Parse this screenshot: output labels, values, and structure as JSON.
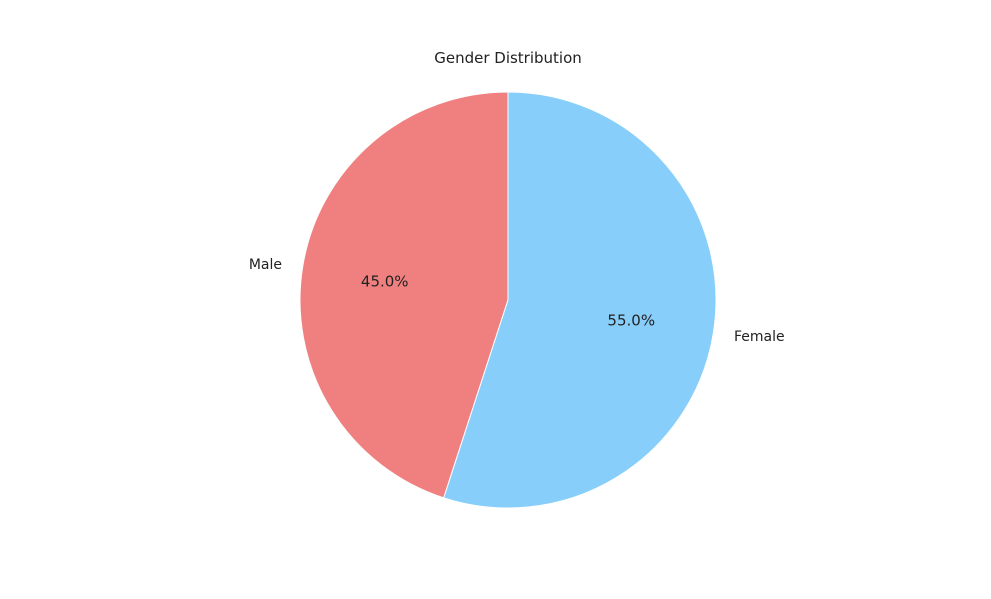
{
  "chart_data": {
    "type": "pie",
    "title": "Gender Distribution",
    "categories": [
      "Male",
      "Female"
    ],
    "values": [
      45.0,
      55.0
    ],
    "percent_labels": [
      "45.0%",
      "55.0%"
    ],
    "colors": [
      "#F08080",
      "#87CEFA"
    ],
    "start_angle_deg": 90,
    "direction": "counterclockwise",
    "edge_color": "#ffffff"
  }
}
